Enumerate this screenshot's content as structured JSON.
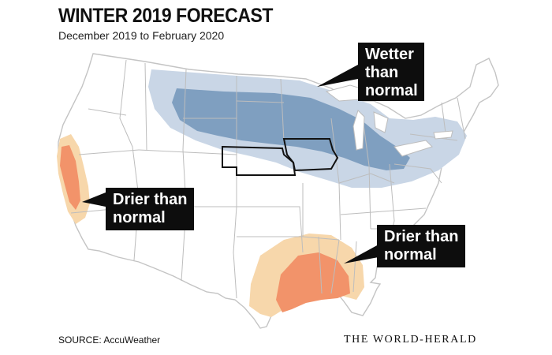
{
  "header": {
    "title": "WINTER 2019 FORECAST",
    "subtitle": "December 2019 to February 2020"
  },
  "callouts": {
    "wetter": [
      "Wetter",
      "than",
      "normal"
    ],
    "drier_west": [
      "Drier than",
      "normal"
    ],
    "drier_south": [
      "Drier than",
      "normal"
    ]
  },
  "footer": {
    "source": "SOURCE: AccuWeather",
    "credit": "THE WORLD-HERALD"
  },
  "colors": {
    "wetter_light": "#c9d6e6",
    "wetter_dark": "#7f9fc0",
    "drier_light": "#f7d7ab",
    "drier_dark": "#f2936a",
    "state_line": "#c2c2c2",
    "highlight_outline": "#111111"
  }
}
